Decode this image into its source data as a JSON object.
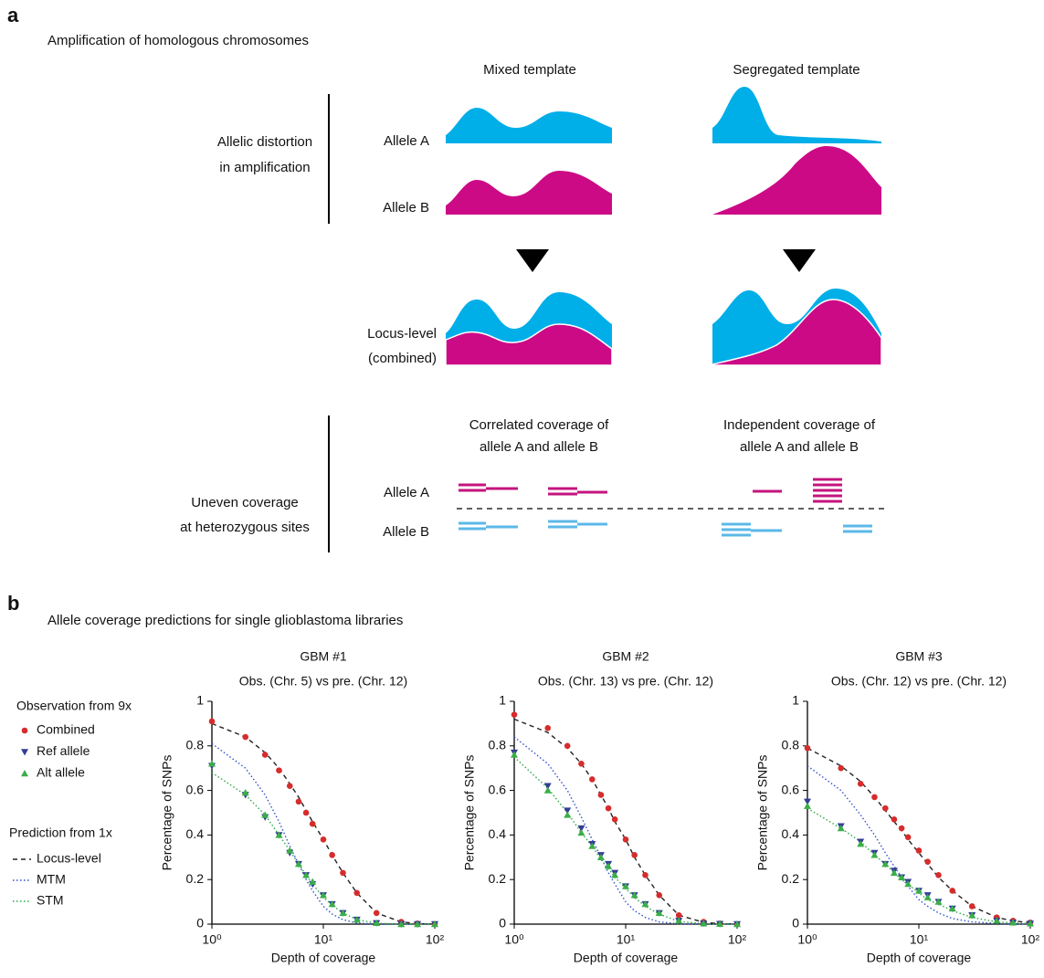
{
  "panel_a": {
    "label": "a",
    "title": "Amplification of homologous chromosomes",
    "columns": [
      "Mixed template",
      "Segregated template"
    ],
    "section_1": {
      "label": [
        "Allelic distortion",
        "in amplification"
      ],
      "rows": [
        "Allele A",
        "Allele B"
      ]
    },
    "combined_label": [
      "Locus-level",
      "(combined)"
    ],
    "section_2": {
      "label": [
        "Uneven coverage",
        "at heterozygous sites"
      ],
      "columns": [
        [
          "Correlated coverage of",
          "allele A and allele B"
        ],
        [
          "Independent coverage of",
          "allele A and allele B"
        ]
      ],
      "rows": [
        "Allele A",
        "Allele B"
      ]
    }
  },
  "panel_b": {
    "label": "b",
    "title": "Allele coverage predictions for single glioblastoma libraries",
    "legend_headings": [
      "Observation from 9x",
      "Prediction from 1x"
    ]
  },
  "chart_data": [
    {
      "type": "scatter",
      "title": "GBM #1",
      "subtitle": "Obs. (Chr. 5) vs pre. (Chr. 12)",
      "x_label": "Depth of coverage",
      "y_label": "Percentage of SNPs",
      "x_scale": "log",
      "xlim": [
        1,
        100
      ],
      "xticks": [
        {
          "value": 1,
          "label": "10⁰"
        },
        {
          "value": 10,
          "label": "10¹"
        },
        {
          "value": 100,
          "label": "10²"
        }
      ],
      "ylim": [
        0,
        1
      ],
      "yticks": [
        0,
        0.2,
        0.4,
        0.6,
        0.8,
        1
      ],
      "x": [
        1,
        2,
        3,
        4,
        5,
        6,
        7,
        8,
        10,
        12,
        15,
        20,
        30,
        50,
        70,
        100
      ],
      "series": [
        {
          "name": "Combined",
          "color": "#d62c2c",
          "marker": "circle",
          "values": [
            0.91,
            0.84,
            0.76,
            0.69,
            0.62,
            0.55,
            0.5,
            0.45,
            0.38,
            0.31,
            0.23,
            0.14,
            0.05,
            0.01,
            0.003,
            0
          ]
        },
        {
          "name": "Ref allele",
          "color": "#343c94",
          "marker": "triangle-down",
          "values": [
            0.71,
            0.58,
            0.48,
            0.4,
            0.32,
            0.27,
            0.22,
            0.18,
            0.13,
            0.09,
            0.05,
            0.02,
            0.005,
            0,
            0,
            0
          ]
        },
        {
          "name": "Alt allele",
          "color": "#3aae48",
          "marker": "triangle-up",
          "values": [
            0.72,
            0.59,
            0.49,
            0.4,
            0.33,
            0.27,
            0.22,
            0.19,
            0.13,
            0.09,
            0.05,
            0.02,
            0.005,
            0,
            0,
            0
          ]
        },
        {
          "name": "Locus-level",
          "color": "#222222",
          "line_style": "dashed",
          "values": [
            0.9,
            0.84,
            0.77,
            0.7,
            0.63,
            0.57,
            0.51,
            0.46,
            0.38,
            0.31,
            0.23,
            0.14,
            0.05,
            0.01,
            0.002,
            0
          ]
        },
        {
          "name": "MTM",
          "color": "#3450c8",
          "line_style": "dotted",
          "values": [
            0.81,
            0.7,
            0.58,
            0.46,
            0.35,
            0.27,
            0.2,
            0.15,
            0.08,
            0.045,
            0.02,
            0.005,
            0,
            0,
            0,
            0
          ]
        },
        {
          "name": "STM",
          "color": "#2aa848",
          "line_style": "dotted",
          "values": [
            0.68,
            0.58,
            0.49,
            0.4,
            0.33,
            0.27,
            0.22,
            0.18,
            0.12,
            0.085,
            0.05,
            0.02,
            0.004,
            0,
            0,
            0
          ]
        }
      ]
    },
    {
      "type": "scatter",
      "title": "GBM #2",
      "subtitle": "Obs. (Chr. 13) vs pre. (Chr. 12)",
      "x_label": "Depth of coverage",
      "y_label": "Percentage of SNPs",
      "x_scale": "log",
      "xlim": [
        1,
        100
      ],
      "xticks": [
        {
          "value": 1,
          "label": "10⁰"
        },
        {
          "value": 10,
          "label": "10¹"
        },
        {
          "value": 100,
          "label": "10²"
        }
      ],
      "ylim": [
        0,
        1
      ],
      "yticks": [
        0,
        0.2,
        0.4,
        0.6,
        0.8,
        1
      ],
      "x": [
        1,
        2,
        3,
        4,
        5,
        6,
        7,
        8,
        10,
        12,
        15,
        20,
        30,
        50,
        70,
        100
      ],
      "series": [
        {
          "name": "Combined",
          "color": "#d62c2c",
          "marker": "circle",
          "values": [
            0.94,
            0.88,
            0.8,
            0.72,
            0.65,
            0.58,
            0.52,
            0.47,
            0.38,
            0.31,
            0.22,
            0.13,
            0.04,
            0.01,
            0.003,
            0
          ]
        },
        {
          "name": "Ref allele",
          "color": "#343c94",
          "marker": "triangle-down",
          "values": [
            0.77,
            0.62,
            0.51,
            0.43,
            0.36,
            0.31,
            0.27,
            0.23,
            0.17,
            0.13,
            0.09,
            0.05,
            0.015,
            0.003,
            0.001,
            0
          ]
        },
        {
          "name": "Alt allele",
          "color": "#3aae48",
          "marker": "triangle-up",
          "values": [
            0.76,
            0.6,
            0.49,
            0.41,
            0.35,
            0.3,
            0.26,
            0.22,
            0.17,
            0.13,
            0.09,
            0.05,
            0.015,
            0.003,
            0.001,
            0
          ]
        },
        {
          "name": "Locus-level",
          "color": "#222222",
          "line_style": "dashed",
          "values": [
            0.92,
            0.86,
            0.79,
            0.72,
            0.65,
            0.58,
            0.52,
            0.46,
            0.38,
            0.3,
            0.22,
            0.13,
            0.04,
            0.008,
            0.002,
            0
          ]
        },
        {
          "name": "MTM",
          "color": "#3450c8",
          "line_style": "dotted",
          "values": [
            0.84,
            0.72,
            0.6,
            0.48,
            0.38,
            0.3,
            0.23,
            0.18,
            0.1,
            0.06,
            0.03,
            0.01,
            0.001,
            0,
            0,
            0
          ]
        },
        {
          "name": "STM",
          "color": "#2aa848",
          "line_style": "dotted",
          "values": [
            0.75,
            0.61,
            0.5,
            0.41,
            0.35,
            0.29,
            0.25,
            0.21,
            0.16,
            0.12,
            0.08,
            0.045,
            0.012,
            0.002,
            0,
            0
          ]
        }
      ]
    },
    {
      "type": "scatter",
      "title": "GBM #3",
      "subtitle": "Obs. (Chr. 12) vs pre. (Chr. 12)",
      "x_label": "Depth of coverage",
      "y_label": "Percentage of SNPs",
      "x_scale": "log",
      "xlim": [
        1,
        100
      ],
      "xticks": [
        {
          "value": 1,
          "label": "10⁰"
        },
        {
          "value": 10,
          "label": "10¹"
        },
        {
          "value": 100,
          "label": "10²"
        }
      ],
      "ylim": [
        0,
        1
      ],
      "yticks": [
        0,
        0.2,
        0.4,
        0.6,
        0.8,
        1
      ],
      "x": [
        1,
        2,
        3,
        4,
        5,
        6,
        7,
        8,
        10,
        12,
        15,
        20,
        30,
        50,
        70,
        100
      ],
      "series": [
        {
          "name": "Combined",
          "color": "#d62c2c",
          "marker": "circle",
          "values": [
            0.79,
            0.7,
            0.63,
            0.57,
            0.52,
            0.47,
            0.43,
            0.39,
            0.33,
            0.28,
            0.22,
            0.15,
            0.08,
            0.03,
            0.015,
            0.007
          ]
        },
        {
          "name": "Ref allele",
          "color": "#343c94",
          "marker": "triangle-down",
          "values": [
            0.55,
            0.44,
            0.37,
            0.32,
            0.27,
            0.24,
            0.21,
            0.19,
            0.15,
            0.13,
            0.1,
            0.07,
            0.04,
            0.015,
            0.007,
            0.003
          ]
        },
        {
          "name": "Alt allele",
          "color": "#3aae48",
          "marker": "triangle-up",
          "values": [
            0.53,
            0.43,
            0.36,
            0.31,
            0.27,
            0.23,
            0.21,
            0.18,
            0.15,
            0.12,
            0.1,
            0.07,
            0.04,
            0.015,
            0.007,
            0.003
          ]
        },
        {
          "name": "Locus-level",
          "color": "#222222",
          "line_style": "dashed",
          "values": [
            0.79,
            0.71,
            0.64,
            0.57,
            0.51,
            0.46,
            0.42,
            0.38,
            0.32,
            0.27,
            0.21,
            0.15,
            0.08,
            0.03,
            0.015,
            0.006
          ]
        },
        {
          "name": "MTM",
          "color": "#3450c8",
          "line_style": "dotted",
          "values": [
            0.71,
            0.6,
            0.49,
            0.4,
            0.32,
            0.26,
            0.21,
            0.17,
            0.11,
            0.08,
            0.05,
            0.025,
            0.01,
            0.003,
            0.001,
            0
          ]
        },
        {
          "name": "STM",
          "color": "#2aa848",
          "line_style": "dotted",
          "values": [
            0.52,
            0.43,
            0.37,
            0.31,
            0.27,
            0.23,
            0.2,
            0.18,
            0.14,
            0.11,
            0.09,
            0.06,
            0.03,
            0.01,
            0.005,
            0.002
          ]
        }
      ]
    }
  ]
}
